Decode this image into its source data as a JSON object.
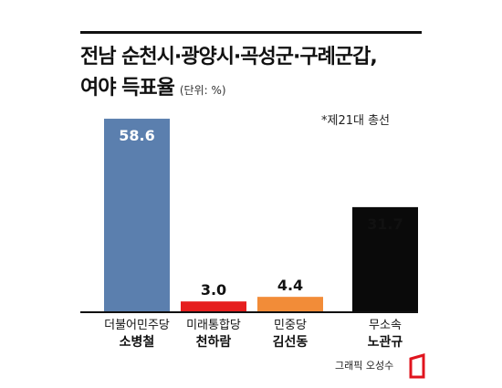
{
  "title_line1": "전남 순천시·광양시·곡성군·구례군갑,",
  "title_line2": "여야 득표율",
  "unit": "(단위: %)",
  "note": "*제21대 총선",
  "credit": "그래픽 오성수",
  "chart_data": {
    "type": "bar",
    "categories": [
      "더불어민주당",
      "미래통합당",
      "민중당",
      "무소속"
    ],
    "candidates": [
      "소병철",
      "천하람",
      "김선동",
      "노관규"
    ],
    "values": [
      58.6,
      3.0,
      4.4,
      31.7
    ],
    "value_labels": [
      "58.6",
      "3.0",
      "4.4",
      "31.7"
    ],
    "colors": [
      "#5b7fae",
      "#e61e1e",
      "#f28c38",
      "#0a0a0a"
    ],
    "label_colors": [
      "#ffffff",
      "#111111",
      "#111111",
      "#111111"
    ],
    "ylim": [
      0,
      60
    ],
    "grid": false,
    "legend": "none"
  },
  "colors": {
    "logo": "#e0141e",
    "text": "#111111"
  }
}
